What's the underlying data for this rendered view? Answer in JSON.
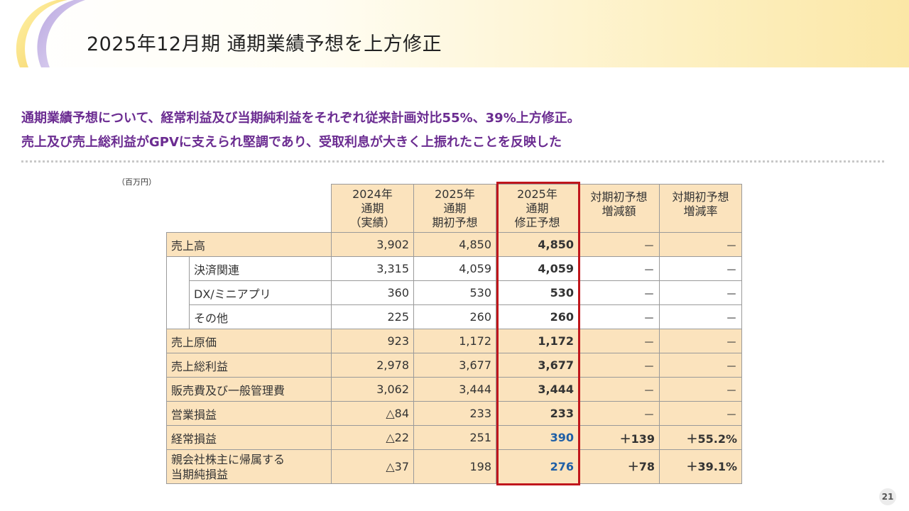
{
  "title": "2025年12月期 通期業績予想を上方修正",
  "lead": {
    "line1": "通期業績予想について、経常利益及び当期純利益をそれぞれ従来計画対比55%、39%上方修正。",
    "line2": "売上及び売上総利益がGPVに支えられ堅調であり、受取利息が大きく上振れたことを反映した"
  },
  "unit_note": "（百万円）",
  "table": {
    "headers": [
      {
        "line1": "2024年",
        "line2": "通期",
        "line3": "（実績）"
      },
      {
        "line1": "2025年",
        "line2": "通期",
        "line3": "期初予想"
      },
      {
        "line1": "2025年",
        "line2": "通期",
        "line3": "修正予想"
      },
      {
        "line1": "対期初予想",
        "line2": "増減額"
      },
      {
        "line1": "対期初予想",
        "line2": "増減率"
      }
    ],
    "rows": [
      {
        "label": "売上高",
        "v2024": "3,902",
        "initial": "4,850",
        "revised": "4,850",
        "diff": "－",
        "rate": "－"
      },
      {
        "label": "決済関連",
        "v2024": "3,315",
        "initial": "4,059",
        "revised": "4,059",
        "diff": "－",
        "rate": "－"
      },
      {
        "label": "DX/ミニアプリ",
        "v2024": "360",
        "initial": "530",
        "revised": "530",
        "diff": "－",
        "rate": "－"
      },
      {
        "label": "その他",
        "v2024": "225",
        "initial": "260",
        "revised": "260",
        "diff": "－",
        "rate": "－"
      },
      {
        "label": "売上原価",
        "v2024": "923",
        "initial": "1,172",
        "revised": "1,172",
        "diff": "－",
        "rate": "－"
      },
      {
        "label": "売上総利益",
        "v2024": "2,978",
        "initial": "3,677",
        "revised": "3,677",
        "diff": "－",
        "rate": "－"
      },
      {
        "label": "販売費及び一般管理費",
        "v2024": "3,062",
        "initial": "3,444",
        "revised": "3,444",
        "diff": "－",
        "rate": "－"
      },
      {
        "label": "営業損益",
        "v2024": "△84",
        "initial": "233",
        "revised": "233",
        "diff": "－",
        "rate": "－"
      },
      {
        "label": "経常損益",
        "v2024": "△22",
        "initial": "251",
        "revised": "390",
        "diff": "＋139",
        "rate": "＋55.2%"
      },
      {
        "label_line1": "親会社株主に帰属する",
        "label_line2": "当期純損益",
        "v2024": "△37",
        "initial": "198",
        "revised": "276",
        "diff": "＋78",
        "rate": "＋39.1%"
      }
    ]
  },
  "page_number": "21",
  "colors": {
    "accent_purple": "#6b2c91",
    "highlight_red": "#c0161c",
    "peach_fill": "#fbe3bd",
    "revised_blue": "#1f5fa6"
  }
}
